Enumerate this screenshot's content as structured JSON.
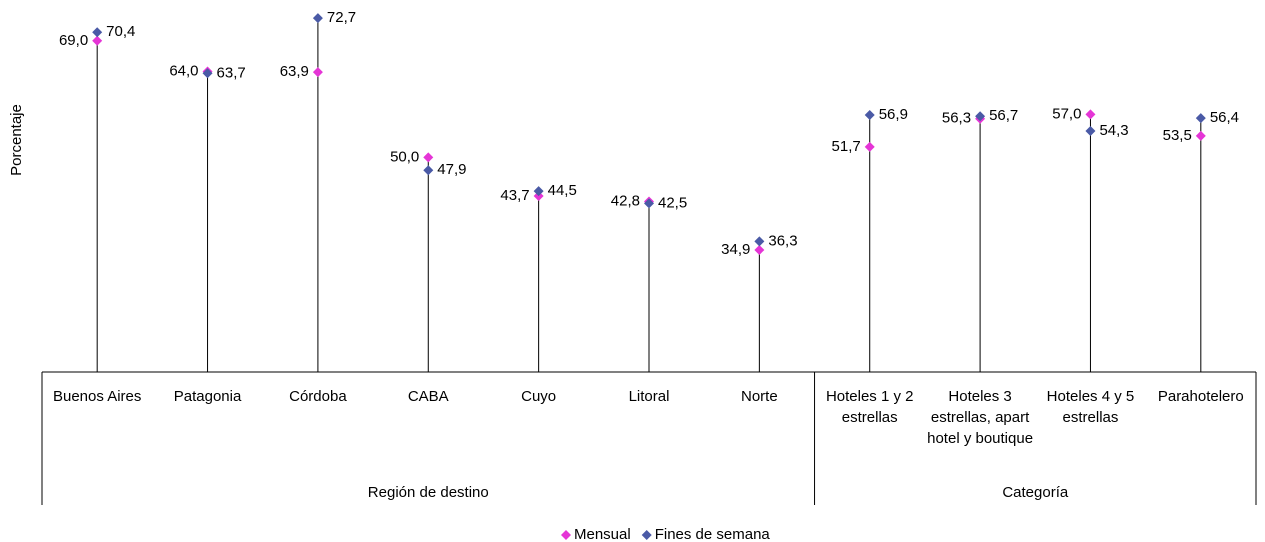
{
  "chart_data": {
    "type": "dot",
    "y_label": "Porcentaje",
    "groups": [
      {
        "name": "Región de destino",
        "categories": [
          "Buenos Aires",
          "Patagonia",
          "Córdoba",
          "CABA",
          "Cuyo",
          "Litoral",
          "Norte"
        ]
      },
      {
        "name": "Categoría",
        "categories": [
          "Hoteles 1 y 2 estrellas",
          "Hoteles 3 estrellas, apart hotel y boutique",
          "Hoteles 4 y 5 estrellas",
          "Parahotelero"
        ]
      }
    ],
    "ylim": [
      15,
      75
    ],
    "series": [
      {
        "name": "Mensual",
        "color": "#e535d6",
        "values": [
          69.0,
          64.0,
          63.9,
          50.0,
          43.7,
          42.8,
          34.9,
          51.7,
          56.3,
          57.0,
          53.5
        ],
        "value_labels": [
          "69,0",
          "64,0",
          "63,9",
          "50,0",
          "43,7",
          "42,8",
          "34,9",
          "51,7",
          "56,3",
          "57,0",
          "53,5"
        ]
      },
      {
        "name": "Fines de semana",
        "color": "#4a5aa6",
        "values": [
          70.4,
          63.7,
          72.7,
          47.9,
          44.5,
          42.5,
          36.3,
          56.9,
          56.7,
          54.3,
          56.4
        ],
        "value_labels": [
          "70,4",
          "63,7",
          "72,7",
          "47,9",
          "44,5",
          "42,5",
          "36,3",
          "56,9",
          "56,7",
          "54,3",
          "56,4"
        ]
      }
    ],
    "legend": "bottom"
  }
}
